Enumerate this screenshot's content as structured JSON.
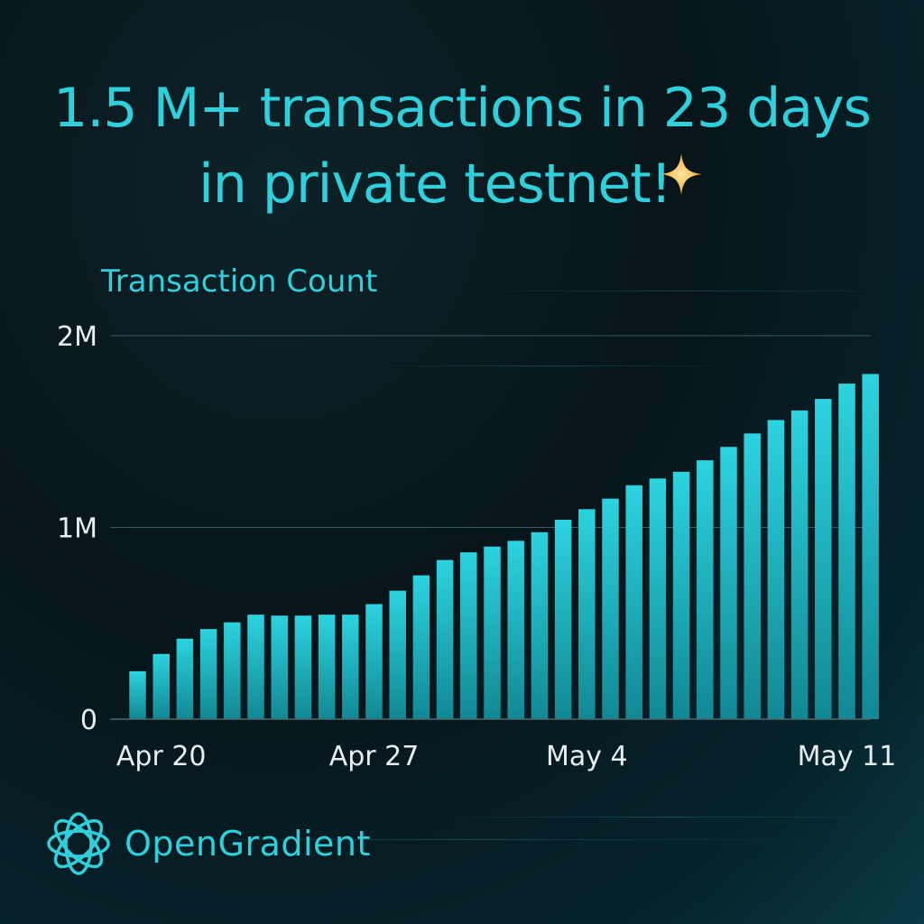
{
  "headline": {
    "line1": "1.5 M+ transactions in 23 days",
    "line2": "in private testnet!",
    "sparkle_icon": "four-point-star"
  },
  "brand": {
    "name": "OpenGradient",
    "logo_icon": "intertwined-loops-logo"
  },
  "colors": {
    "accent": "#2fd0dc",
    "bar_top": "#2cd3df",
    "bar_bottom": "#118894",
    "sparkle": "#f2a536"
  },
  "chart_data": {
    "type": "bar",
    "ylabel": "Transaction Count",
    "ylim": [
      0,
      2000000
    ],
    "yticks": [
      {
        "value": 0,
        "label": "0"
      },
      {
        "value": 1000000,
        "label": "1M"
      },
      {
        "value": 2000000,
        "label": "2M"
      }
    ],
    "xticks": [
      {
        "index": 1,
        "label": "Apr 20"
      },
      {
        "index": 10,
        "label": "Apr 27"
      },
      {
        "index": 19,
        "label": "May 4"
      },
      {
        "index": 30,
        "label": "May 11"
      }
    ],
    "values": [
      250000,
      340000,
      420000,
      470000,
      505000,
      545000,
      540000,
      540000,
      545000,
      545000,
      600000,
      670000,
      750000,
      830000,
      870000,
      900000,
      930000,
      975000,
      1040000,
      1095000,
      1150000,
      1220000,
      1255000,
      1290000,
      1350000,
      1420000,
      1490000,
      1560000,
      1610000,
      1670000,
      1750000,
      1800000
    ],
    "grid": true,
    "legend": "none"
  }
}
